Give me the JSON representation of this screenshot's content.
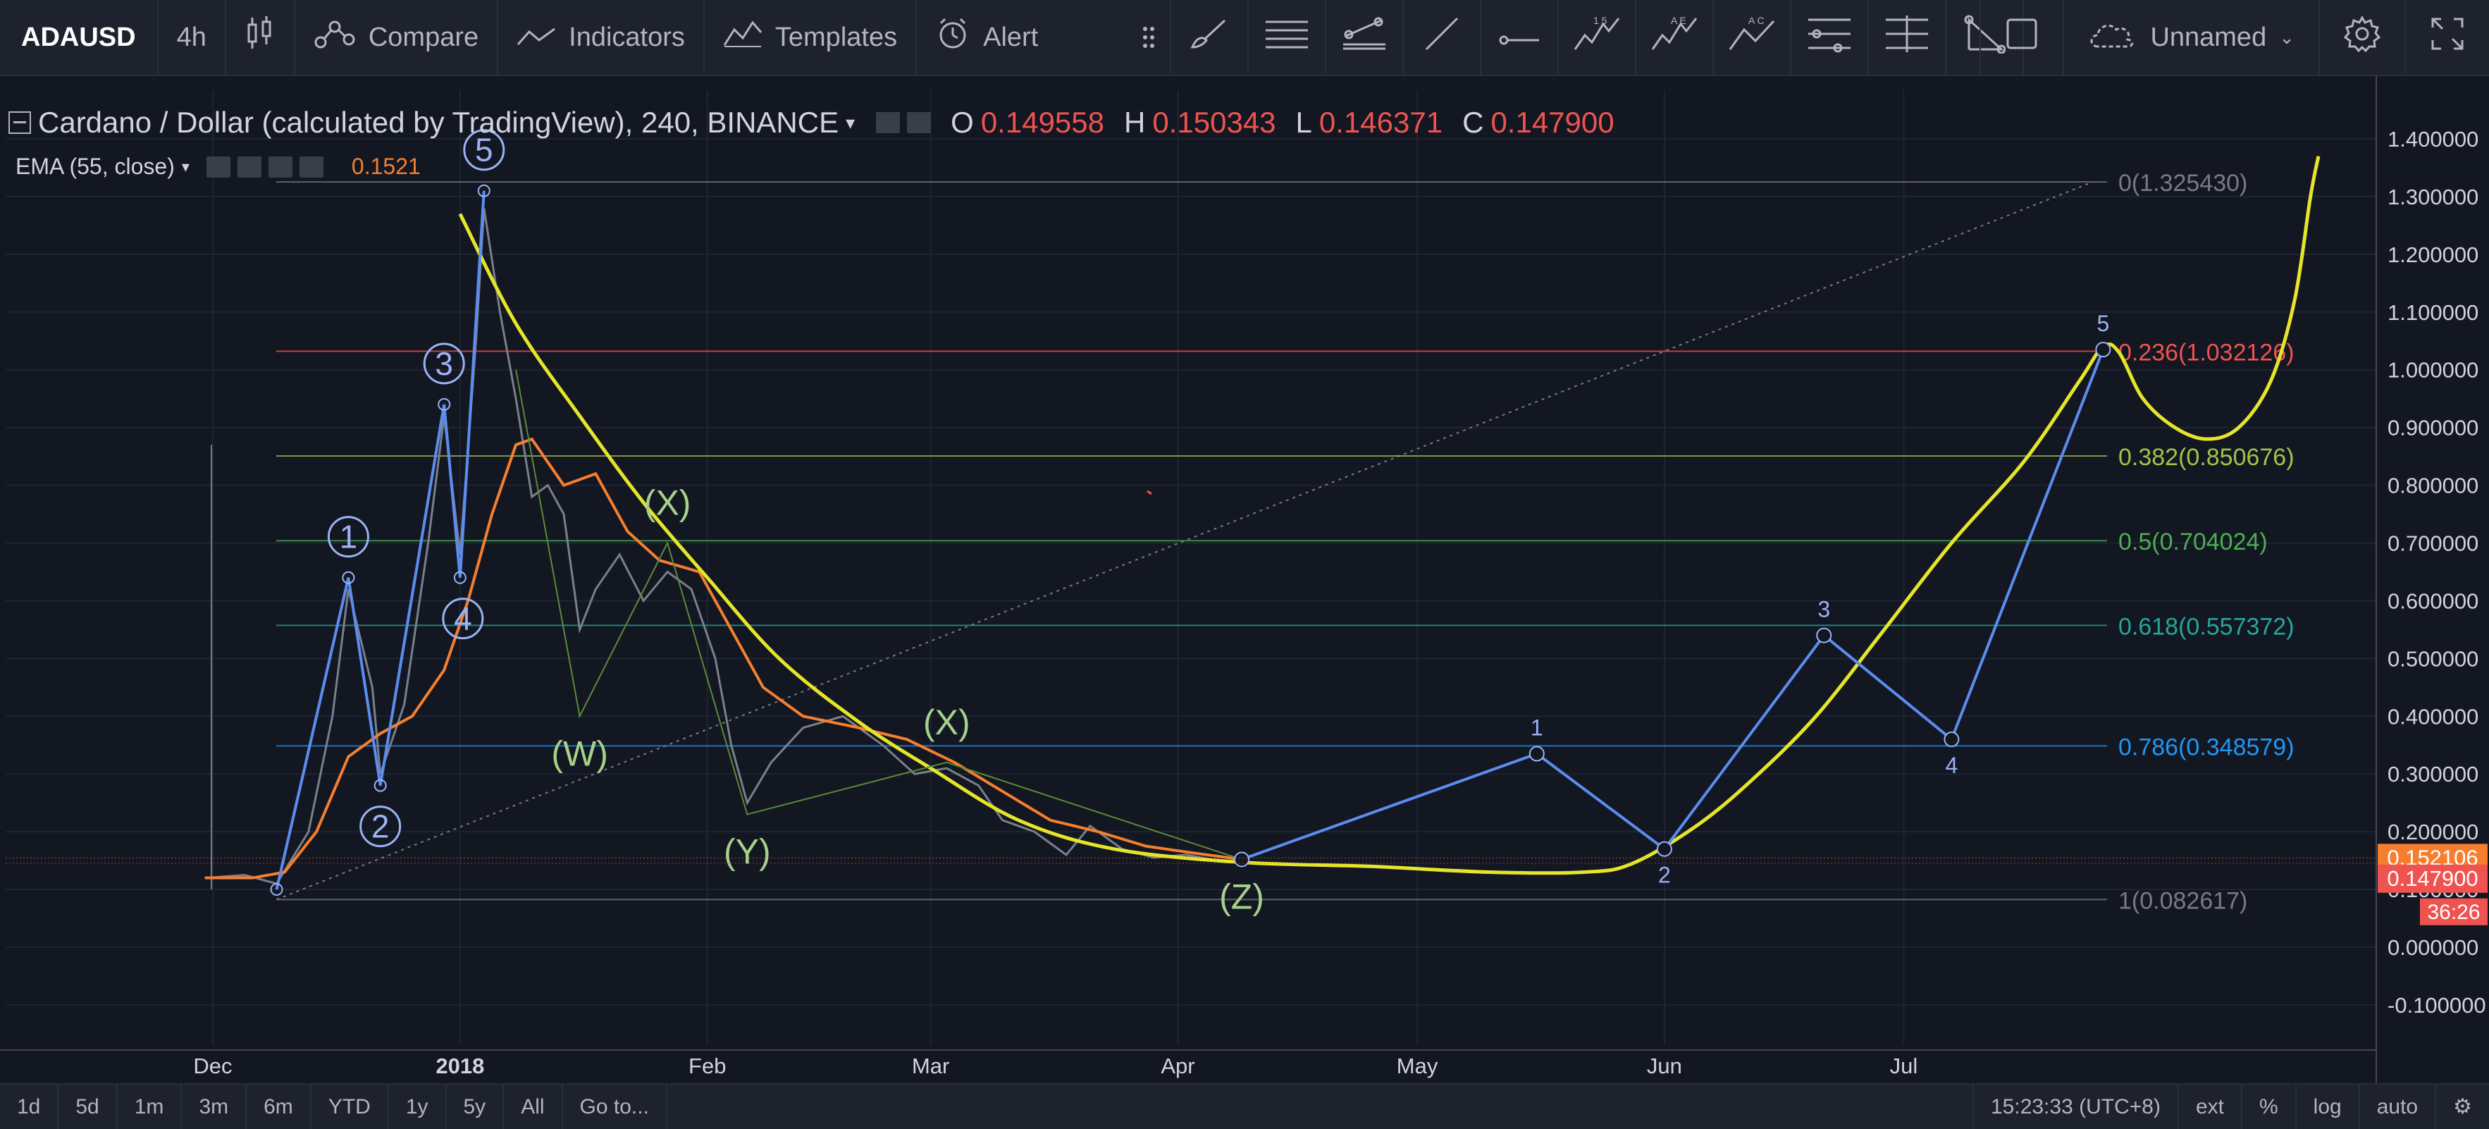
{
  "toolbar": {
    "symbol": "ADAUSD",
    "interval": "4h",
    "compare": "Compare",
    "indicators": "Indicators",
    "templates": "Templates",
    "alert": "Alert",
    "layout_name": "Unnamed"
  },
  "legend": {
    "title": "Cardano / Dollar (calculated by TradingView), 240, BINANCE",
    "open_label": "O",
    "open": "0.149558",
    "high_label": "H",
    "high": "0.150343",
    "low_label": "L",
    "low": "0.146371",
    "close_label": "C",
    "close": "0.147900",
    "ema_label": "EMA (55, close)",
    "ema_value": "0.1521"
  },
  "bottombar": {
    "ranges": [
      "1d",
      "5d",
      "1m",
      "3m",
      "6m",
      "YTD",
      "1y",
      "5y",
      "All"
    ],
    "goto": "Go to...",
    "time": "15:23:33 (UTC+8)",
    "ext": "ext",
    "percent": "%",
    "log": "log",
    "auto": "auto"
  },
  "chart_data": {
    "type": "line",
    "x_axis_labels": [
      {
        "label": "Dec",
        "date": "2017-12-01"
      },
      {
        "label": "2018",
        "date": "2018-01-01"
      },
      {
        "label": "Feb",
        "date": "2018-02-01"
      },
      {
        "label": "Mar",
        "date": "2018-03-01"
      },
      {
        "label": "Apr",
        "date": "2018-04-01"
      },
      {
        "label": "May",
        "date": "2018-05-01"
      },
      {
        "label": "Jun",
        "date": "2018-06-01"
      },
      {
        "label": "Jul",
        "date": "2018-07-01"
      }
    ],
    "x_range": [
      "2017-11-30",
      "2018-08-22"
    ],
    "ylim": [
      -0.15,
      1.45
    ],
    "y_ticks": [
      "-0.100000",
      "0.000000",
      "0.100000",
      "0.200000",
      "0.300000",
      "0.400000",
      "0.500000",
      "0.600000",
      "0.700000",
      "0.800000",
      "0.900000",
      "1.000000",
      "1.100000",
      "1.200000",
      "1.300000",
      "1.400000"
    ],
    "price_series": [
      {
        "date": "2017-11-30",
        "value": 0.12
      },
      {
        "date": "2017-12-05",
        "value": 0.125
      },
      {
        "date": "2017-12-09",
        "value": 0.11
      },
      {
        "date": "2017-12-13",
        "value": 0.2
      },
      {
        "date": "2017-12-16",
        "value": 0.4
      },
      {
        "date": "2017-12-18",
        "value": 0.62
      },
      {
        "date": "2017-12-21",
        "value": 0.45
      },
      {
        "date": "2017-12-22",
        "value": 0.3
      },
      {
        "date": "2017-12-25",
        "value": 0.42
      },
      {
        "date": "2017-12-28",
        "value": 0.7
      },
      {
        "date": "2017-12-30",
        "value": 0.92
      },
      {
        "date": "2018-01-01",
        "value": 0.68
      },
      {
        "date": "2018-01-03",
        "value": 1.05
      },
      {
        "date": "2018-01-04",
        "value": 1.28
      },
      {
        "date": "2018-01-06",
        "value": 1.1
      },
      {
        "date": "2018-01-08",
        "value": 0.95
      },
      {
        "date": "2018-01-10",
        "value": 0.78
      },
      {
        "date": "2018-01-12",
        "value": 0.8
      },
      {
        "date": "2018-01-14",
        "value": 0.75
      },
      {
        "date": "2018-01-16",
        "value": 0.55
      },
      {
        "date": "2018-01-18",
        "value": 0.62
      },
      {
        "date": "2018-01-21",
        "value": 0.68
      },
      {
        "date": "2018-01-24",
        "value": 0.6
      },
      {
        "date": "2018-01-27",
        "value": 0.65
      },
      {
        "date": "2018-01-30",
        "value": 0.62
      },
      {
        "date": "2018-02-02",
        "value": 0.5
      },
      {
        "date": "2018-02-04",
        "value": 0.35
      },
      {
        "date": "2018-02-06",
        "value": 0.25
      },
      {
        "date": "2018-02-09",
        "value": 0.32
      },
      {
        "date": "2018-02-13",
        "value": 0.38
      },
      {
        "date": "2018-02-18",
        "value": 0.4
      },
      {
        "date": "2018-02-23",
        "value": 0.35
      },
      {
        "date": "2018-02-27",
        "value": 0.3
      },
      {
        "date": "2018-03-03",
        "value": 0.31
      },
      {
        "date": "2018-03-07",
        "value": 0.28
      },
      {
        "date": "2018-03-10",
        "value": 0.22
      },
      {
        "date": "2018-03-14",
        "value": 0.2
      },
      {
        "date": "2018-03-18",
        "value": 0.16
      },
      {
        "date": "2018-03-21",
        "value": 0.21
      },
      {
        "date": "2018-03-25",
        "value": 0.17
      },
      {
        "date": "2018-03-29",
        "value": 0.155
      },
      {
        "date": "2018-04-02",
        "value": 0.16
      },
      {
        "date": "2018-04-06",
        "value": 0.15
      },
      {
        "date": "2018-04-09",
        "value": 0.148
      }
    ],
    "ema_series": [
      {
        "date": "2017-11-30",
        "value": 0.12
      },
      {
        "date": "2017-12-06",
        "value": 0.12
      },
      {
        "date": "2017-12-10",
        "value": 0.13
      },
      {
        "date": "2017-12-14",
        "value": 0.2
      },
      {
        "date": "2017-12-18",
        "value": 0.33
      },
      {
        "date": "2017-12-22",
        "value": 0.37
      },
      {
        "date": "2017-12-26",
        "value": 0.4
      },
      {
        "date": "2017-12-30",
        "value": 0.48
      },
      {
        "date": "2018-01-02",
        "value": 0.6
      },
      {
        "date": "2018-01-05",
        "value": 0.75
      },
      {
        "date": "2018-01-08",
        "value": 0.87
      },
      {
        "date": "2018-01-10",
        "value": 0.88
      },
      {
        "date": "2018-01-14",
        "value": 0.8
      },
      {
        "date": "2018-01-18",
        "value": 0.82
      },
      {
        "date": "2018-01-22",
        "value": 0.72
      },
      {
        "date": "2018-01-26",
        "value": 0.67
      },
      {
        "date": "2018-01-31",
        "value": 0.65
      },
      {
        "date": "2018-02-04",
        "value": 0.55
      },
      {
        "date": "2018-02-08",
        "value": 0.45
      },
      {
        "date": "2018-02-13",
        "value": 0.4
      },
      {
        "date": "2018-02-20",
        "value": 0.38
      },
      {
        "date": "2018-02-26",
        "value": 0.36
      },
      {
        "date": "2018-03-04",
        "value": 0.32
      },
      {
        "date": "2018-03-10",
        "value": 0.27
      },
      {
        "date": "2018-03-16",
        "value": 0.22
      },
      {
        "date": "2018-03-22",
        "value": 0.2
      },
      {
        "date": "2018-03-28",
        "value": 0.175
      },
      {
        "date": "2018-04-03",
        "value": 0.163
      },
      {
        "date": "2018-04-09",
        "value": 0.152
      }
    ],
    "projection_curve": [
      {
        "date": "2018-01-01",
        "value": 1.27
      },
      {
        "date": "2018-01-08",
        "value": 1.08
      },
      {
        "date": "2018-01-16",
        "value": 0.92
      },
      {
        "date": "2018-01-24",
        "value": 0.77
      },
      {
        "date": "2018-02-01",
        "value": 0.64
      },
      {
        "date": "2018-02-10",
        "value": 0.5
      },
      {
        "date": "2018-02-20",
        "value": 0.39
      },
      {
        "date": "2018-03-01",
        "value": 0.31
      },
      {
        "date": "2018-03-12",
        "value": 0.22
      },
      {
        "date": "2018-03-24",
        "value": 0.17
      },
      {
        "date": "2018-04-09",
        "value": 0.147
      },
      {
        "date": "2018-04-25",
        "value": 0.14
      },
      {
        "date": "2018-05-10",
        "value": 0.13
      },
      {
        "date": "2018-05-22",
        "value": 0.13
      },
      {
        "date": "2018-05-28",
        "value": 0.145
      },
      {
        "date": "2018-06-05",
        "value": 0.21
      },
      {
        "date": "2018-06-12",
        "value": 0.29
      },
      {
        "date": "2018-06-20",
        "value": 0.4
      },
      {
        "date": "2018-06-28",
        "value": 0.54
      },
      {
        "date": "2018-07-07",
        "value": 0.7
      },
      {
        "date": "2018-07-16",
        "value": 0.84
      },
      {
        "date": "2018-07-23",
        "value": 0.98
      },
      {
        "date": "2018-07-26",
        "value": 1.04
      },
      {
        "date": "2018-07-28",
        "value": 1.03
      },
      {
        "date": "2018-07-31",
        "value": 0.95
      },
      {
        "date": "2018-08-04",
        "value": 0.9
      },
      {
        "date": "2018-08-08",
        "value": 0.88
      },
      {
        "date": "2018-08-12",
        "value": 0.9
      },
      {
        "date": "2018-08-16",
        "value": 0.98
      },
      {
        "date": "2018-08-19",
        "value": 1.12
      },
      {
        "date": "2018-08-21",
        "value": 1.3
      },
      {
        "date": "2018-08-22",
        "value": 1.37
      }
    ],
    "wave_impulse": [
      {
        "date": "2017-12-09",
        "value": 0.1,
        "label": ""
      },
      {
        "date": "2017-12-18",
        "value": 0.64,
        "label": "1"
      },
      {
        "date": "2017-12-22",
        "value": 0.28,
        "label": "2"
      },
      {
        "date": "2017-12-30",
        "value": 0.94,
        "label": "3"
      },
      {
        "date": "2018-01-01",
        "value": 0.64,
        "label": "4"
      },
      {
        "date": "2018-01-04",
        "value": 1.31,
        "label": "5"
      }
    ],
    "wave_corrective": [
      {
        "date": "2018-01-08",
        "value": 1.0,
        "label": ""
      },
      {
        "date": "2018-01-16",
        "value": 0.4,
        "label": "(W)"
      },
      {
        "date": "2018-01-27",
        "value": 0.7,
        "label": "(X)"
      },
      {
        "date": "2018-02-06",
        "value": 0.23,
        "label": "(Y)"
      },
      {
        "date": "2018-03-03",
        "value": 0.32,
        "label": "(X)"
      },
      {
        "date": "2018-04-09",
        "value": 0.152,
        "label": "(Z)"
      }
    ],
    "wave_projection": [
      {
        "date": "2018-04-09",
        "value": 0.152,
        "label": ""
      },
      {
        "date": "2018-05-16",
        "value": 0.335,
        "label": "1"
      },
      {
        "date": "2018-06-01",
        "value": 0.17,
        "label": "2"
      },
      {
        "date": "2018-06-21",
        "value": 0.54,
        "label": "3"
      },
      {
        "date": "2018-07-07",
        "value": 0.36,
        "label": "4"
      },
      {
        "date": "2018-07-26",
        "value": 1.035,
        "label": "5"
      }
    ],
    "fib_start": "2017-12-09",
    "fib_levels": [
      {
        "ratio": "0",
        "value": 1.32543,
        "label": "0(1.325430)",
        "color": "#787b86"
      },
      {
        "ratio": "0.236",
        "value": 1.032126,
        "label": "0.236(1.032126)",
        "color": "#ef5350"
      },
      {
        "ratio": "0.382",
        "value": 0.850676,
        "label": "0.382(0.850676)",
        "color": "#a5c24a"
      },
      {
        "ratio": "0.5",
        "value": 0.704024,
        "label": "0.5(0.704024)",
        "color": "#4caf50"
      },
      {
        "ratio": "0.618",
        "value": 0.557372,
        "label": "0.618(0.557372)",
        "color": "#26a69a"
      },
      {
        "ratio": "0.786",
        "value": 0.348579,
        "label": "0.786(0.348579)",
        "color": "#2196f3"
      },
      {
        "ratio": "1",
        "value": 0.082617,
        "label": "1(0.082617)",
        "color": "#787b86"
      }
    ],
    "price_badges": [
      {
        "label": "0.152106",
        "value": 0.152106,
        "color": "#f57f2f"
      },
      {
        "label": "0.147900",
        "value": 0.1479,
        "color": "#ef5350"
      }
    ],
    "countdown": "36:26",
    "colors": {
      "background": "#131722",
      "price": "#7a7f8c",
      "ema": "#f57f2f",
      "projection_curve": "#e5e529",
      "wave_blue": "#5b8def",
      "wave_label_blue": "#9ab3f5",
      "wave_label_green": "#a6d18a",
      "corrective_line": "#5c8a3a",
      "fib_trend": "#787b86"
    }
  }
}
